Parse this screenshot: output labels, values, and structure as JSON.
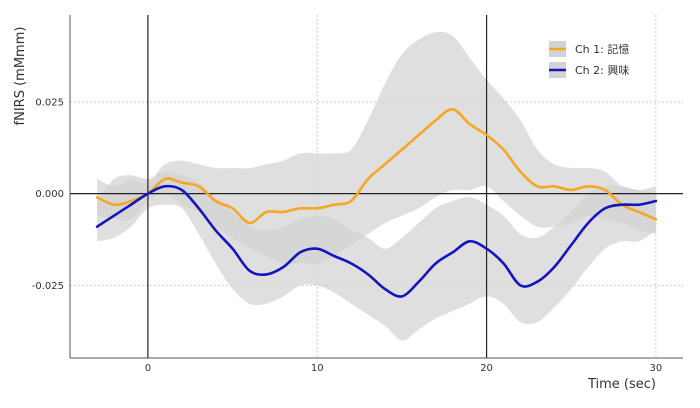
{
  "chart_data": {
    "type": "line",
    "title": "",
    "xlabel": "Time (sec)",
    "ylabel": "fNIRS (mMmm)",
    "xlim": [
      -4.6,
      31.6
    ],
    "ylim": [
      -0.0448,
      0.0487
    ],
    "xticks": [
      0,
      10,
      20,
      30
    ],
    "xtick_labels": [
      "0",
      "10",
      "20",
      "30"
    ],
    "yticks": [
      -0.025,
      0.0,
      0.025
    ],
    "ytick_labels": [
      "-0.025",
      "0.000",
      "0.025"
    ],
    "grid": true,
    "legend_position": "top-right",
    "event_lines": [
      0,
      20
    ],
    "series": [
      {
        "name": "Ch 1: 記憶",
        "color": "#f5a623",
        "band_color": "#d3d3d3",
        "x": [
          -3,
          -2,
          -1,
          0,
          1,
          2,
          3,
          4,
          5,
          6,
          7,
          8,
          9,
          10,
          11,
          12,
          13,
          14,
          15,
          16,
          17,
          18,
          19,
          20,
          21,
          22,
          23,
          24,
          25,
          26,
          27,
          28,
          29,
          30
        ],
        "y": [
          -0.001,
          -0.003,
          -0.002,
          0.0,
          0.004,
          0.003,
          0.002,
          -0.002,
          -0.004,
          -0.008,
          -0.005,
          -0.005,
          -0.004,
          -0.004,
          -0.003,
          -0.002,
          0.004,
          0.008,
          0.012,
          0.016,
          0.02,
          0.023,
          0.019,
          0.016,
          0.012,
          0.006,
          0.002,
          0.002,
          0.001,
          0.002,
          0.001,
          -0.003,
          -0.005,
          -0.007
        ],
        "upper": [
          0.004,
          0.002,
          0.004,
          0.003,
          0.008,
          0.009,
          0.008,
          0.007,
          0.007,
          0.007,
          0.008,
          0.009,
          0.011,
          0.011,
          0.011,
          0.012,
          0.02,
          0.03,
          0.038,
          0.042,
          0.044,
          0.043,
          0.037,
          0.031,
          0.026,
          0.02,
          0.012,
          0.008,
          0.007,
          0.007,
          0.006,
          0.002,
          0.001,
          0.0
        ],
        "lower": [
          -0.006,
          -0.007,
          -0.007,
          -0.002,
          0.0,
          -0.003,
          -0.005,
          -0.009,
          -0.012,
          -0.015,
          -0.017,
          -0.019,
          -0.019,
          -0.019,
          -0.017,
          -0.014,
          -0.011,
          -0.008,
          -0.006,
          -0.004,
          -0.001,
          0.001,
          0.001,
          0.002,
          -0.002,
          -0.006,
          -0.009,
          -0.009,
          -0.008,
          -0.006,
          -0.007,
          -0.008,
          -0.01,
          -0.011
        ]
      },
      {
        "name": "Ch 2: 興味",
        "color": "#1515c0",
        "band_color": "#d3d3d3",
        "x": [
          -3,
          -2,
          -1,
          0,
          1,
          2,
          3,
          4,
          5,
          6,
          7,
          8,
          9,
          10,
          11,
          12,
          13,
          14,
          15,
          16,
          17,
          18,
          19,
          20,
          21,
          22,
          23,
          24,
          25,
          26,
          27,
          28,
          29,
          30
        ],
        "y": [
          -0.009,
          -0.006,
          -0.003,
          0.0,
          0.002,
          0.001,
          -0.004,
          -0.01,
          -0.015,
          -0.021,
          -0.022,
          -0.02,
          -0.016,
          -0.015,
          -0.017,
          -0.019,
          -0.022,
          -0.026,
          -0.028,
          -0.024,
          -0.019,
          -0.016,
          -0.013,
          -0.015,
          -0.019,
          -0.025,
          -0.024,
          -0.02,
          -0.014,
          -0.008,
          -0.004,
          -0.003,
          -0.003,
          -0.002
        ],
        "upper": [
          -0.002,
          0.004,
          0.005,
          0.004,
          0.006,
          0.005,
          0.003,
          -0.001,
          -0.005,
          -0.009,
          -0.01,
          -0.009,
          -0.007,
          -0.006,
          -0.007,
          -0.01,
          -0.012,
          -0.015,
          -0.012,
          -0.008,
          -0.004,
          -0.002,
          -0.001,
          -0.003,
          -0.006,
          -0.011,
          -0.012,
          -0.009,
          -0.005,
          0.0,
          0.002,
          0.002,
          0.001,
          0.002
        ],
        "lower": [
          -0.013,
          -0.012,
          -0.009,
          -0.004,
          -0.003,
          -0.004,
          -0.011,
          -0.019,
          -0.026,
          -0.03,
          -0.03,
          -0.028,
          -0.025,
          -0.025,
          -0.027,
          -0.03,
          -0.033,
          -0.036,
          -0.04,
          -0.037,
          -0.034,
          -0.032,
          -0.03,
          -0.028,
          -0.03,
          -0.035,
          -0.035,
          -0.031,
          -0.026,
          -0.02,
          -0.015,
          -0.013,
          -0.013,
          -0.01
        ]
      }
    ]
  }
}
